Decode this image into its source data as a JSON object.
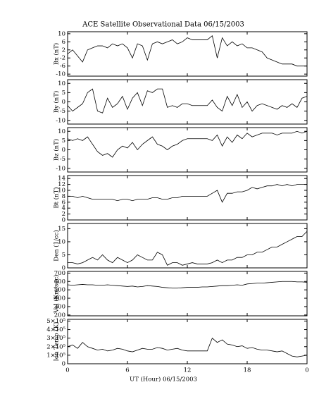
{
  "chart_data": [
    {
      "type": "line",
      "title": "ACE Satellite Observational Data  06/15/2003",
      "ylabel": "Bx (nT)",
      "color": "#000000",
      "x": [
        0,
        0.5,
        1,
        1.5,
        2,
        2.5,
        3,
        3.5,
        4,
        4.5,
        5,
        5.5,
        6,
        6.5,
        7,
        7.5,
        8,
        8.5,
        9,
        9.5,
        10,
        10.5,
        11,
        11.5,
        12,
        12.5,
        13,
        13.5,
        14,
        14.5,
        15,
        15.5,
        16,
        16.5,
        17,
        17.5,
        18,
        18.5,
        19,
        19.5,
        20,
        20.5,
        21,
        21.5,
        22,
        22.5,
        23,
        23.5,
        24
      ],
      "values": [
        0,
        2,
        -1,
        -4,
        2,
        3,
        4,
        4,
        3,
        5,
        4,
        5,
        3,
        -2,
        5,
        4,
        -3,
        5,
        6,
        5,
        6,
        7,
        5,
        6,
        8,
        7,
        7,
        7,
        7,
        9,
        -2,
        8,
        4,
        6,
        4,
        5,
        3,
        3,
        2,
        1,
        -2,
        -3,
        -4,
        -5,
        -5,
        -5,
        -6,
        -6,
        -6
      ],
      "xlim": [
        0,
        24
      ],
      "ylim": [
        -11,
        11
      ],
      "yticks": [
        -10,
        -6,
        -2,
        2,
        6,
        10
      ]
    },
    {
      "type": "line",
      "ylabel": "By (nT)",
      "color": "#000000",
      "x": [
        0,
        0.5,
        1,
        1.5,
        2,
        2.5,
        3,
        3.5,
        4,
        4.5,
        5,
        5.5,
        6,
        6.5,
        7,
        7.5,
        8,
        8.5,
        9,
        9.5,
        10,
        10.5,
        11,
        11.5,
        12,
        12.5,
        13,
        13.5,
        14,
        14.5,
        15,
        15.5,
        16,
        16.5,
        17,
        17.5,
        18,
        18.5,
        19,
        19.5,
        20,
        20.5,
        21,
        21.5,
        22,
        22.5,
        23,
        23.5,
        24
      ],
      "values": [
        -2,
        -5,
        -3,
        -1,
        5,
        7,
        -5,
        -6,
        2,
        -3,
        -1,
        3,
        -4,
        2,
        5,
        -2,
        6,
        5,
        7,
        7,
        -3,
        -2,
        -3,
        -1,
        -1,
        -2,
        -2,
        -2,
        -2,
        1,
        -3,
        -5,
        3,
        -2,
        4,
        -3,
        0,
        -5,
        -2,
        -1,
        -2,
        -3,
        -4,
        -2,
        -3,
        -1,
        -3,
        2,
        3
      ],
      "xlim": [
        0,
        24
      ],
      "ylim": [
        -12,
        12
      ],
      "yticks": [
        -10,
        -5,
        0,
        5,
        10
      ]
    },
    {
      "type": "line",
      "ylabel": "Bz (nT)",
      "color": "#000000",
      "x": [
        0,
        0.5,
        1,
        1.5,
        2,
        2.5,
        3,
        3.5,
        4,
        4.5,
        5,
        5.5,
        6,
        6.5,
        7,
        7.5,
        8,
        8.5,
        9,
        9.5,
        10,
        10.5,
        11,
        11.5,
        12,
        12.5,
        13,
        13.5,
        14,
        14.5,
        15,
        15.5,
        16,
        16.5,
        17,
        17.5,
        18,
        18.5,
        19,
        19.5,
        20,
        20.5,
        21,
        21.5,
        22,
        22.5,
        23,
        23.5,
        24
      ],
      "values": [
        6,
        5,
        6,
        5,
        7,
        3,
        -1,
        -3,
        -2,
        -4,
        0,
        2,
        1,
        4,
        0,
        3,
        5,
        7,
        3,
        2,
        0,
        2,
        3,
        5,
        6,
        6,
        6,
        6,
        6,
        5,
        8,
        2,
        7,
        4,
        8,
        6,
        9,
        7,
        8,
        9,
        9,
        9,
        8,
        9,
        9,
        9,
        10,
        9,
        10
      ],
      "xlim": [
        0,
        24
      ],
      "ylim": [
        -12,
        12
      ],
      "yticks": [
        -10,
        -5,
        0,
        5,
        10
      ]
    },
    {
      "type": "line",
      "ylabel": "Bt (nT)",
      "color": "#000000",
      "x": [
        0,
        0.5,
        1,
        1.5,
        2,
        2.5,
        3,
        3.5,
        4,
        4.5,
        5,
        5.5,
        6,
        6.5,
        7,
        7.5,
        8,
        8.5,
        9,
        9.5,
        10,
        10.5,
        11,
        11.5,
        12,
        12.5,
        13,
        13.5,
        14,
        14.5,
        15,
        15.5,
        16,
        16.5,
        17,
        17.5,
        18,
        18.5,
        19,
        19.5,
        20,
        20.5,
        21,
        21.5,
        22,
        22.5,
        23,
        23.5,
        24
      ],
      "values": [
        8,
        8,
        7.5,
        8,
        7.5,
        7,
        7,
        7,
        7,
        7,
        6.5,
        7,
        7,
        6.5,
        7,
        7,
        7,
        7.5,
        7.5,
        7,
        7,
        7.5,
        7.5,
        8,
        8,
        8,
        8,
        8,
        8,
        9,
        10,
        6,
        9,
        9,
        9.5,
        9.5,
        10,
        11,
        10.5,
        11,
        11.5,
        11.5,
        12,
        11.5,
        12,
        11.5,
        12,
        12,
        12
      ],
      "xlim": [
        0,
        24
      ],
      "ylim": [
        0,
        15
      ],
      "yticks": [
        0,
        2,
        4,
        6,
        8,
        10,
        12,
        14
      ]
    },
    {
      "type": "line",
      "ylabel": "Den (1/cc)",
      "color": "#000000",
      "x": [
        0,
        0.5,
        1,
        1.5,
        2,
        2.5,
        3,
        3.5,
        4,
        4.5,
        5,
        5.5,
        6,
        6.5,
        7,
        7.5,
        8,
        8.5,
        9,
        9.5,
        10,
        10.5,
        11,
        11.5,
        12,
        12.5,
        13,
        13.5,
        14,
        14.5,
        15,
        15.5,
        16,
        16.5,
        17,
        17.5,
        18,
        18.5,
        19,
        19.5,
        20,
        20.5,
        21,
        21.5,
        22,
        22.5,
        23,
        23.5,
        24
      ],
      "values": [
        2,
        2,
        1.5,
        2,
        3,
        4,
        3,
        5,
        3,
        2,
        4,
        3,
        2,
        3,
        5,
        4,
        3,
        3,
        6,
        5,
        1,
        2,
        2,
        1,
        1.5,
        2,
        1.5,
        1.5,
        1.5,
        2,
        3,
        2,
        3,
        3,
        4,
        4,
        5,
        5,
        6,
        6,
        7,
        8,
        8,
        9,
        10,
        11,
        12,
        12,
        14
      ],
      "xlim": [
        0,
        24
      ],
      "ylim": [
        0,
        17
      ],
      "yticks": [
        0,
        5,
        10,
        15
      ]
    },
    {
      "type": "line",
      "ylabel": "Vel (Km/sec)",
      "color": "#000000",
      "x": [
        0,
        0.5,
        1,
        1.5,
        2,
        2.5,
        3,
        3.5,
        4,
        4.5,
        5,
        5.5,
        6,
        6.5,
        7,
        7.5,
        8,
        8.5,
        9,
        9.5,
        10,
        10.5,
        11,
        11.5,
        12,
        12.5,
        13,
        13.5,
        14,
        14.5,
        15,
        15.5,
        16,
        16.5,
        17,
        17.5,
        18,
        18.5,
        19,
        19.5,
        20,
        20.5,
        21,
        21.5,
        22,
        22.5,
        23,
        23.5,
        24
      ],
      "values": [
        560,
        555,
        560,
        565,
        560,
        560,
        555,
        555,
        560,
        555,
        550,
        545,
        540,
        545,
        535,
        540,
        550,
        545,
        540,
        530,
        525,
        520,
        520,
        525,
        530,
        530,
        530,
        535,
        535,
        540,
        545,
        550,
        550,
        555,
        560,
        555,
        570,
        575,
        580,
        580,
        585,
        590,
        595,
        600,
        600,
        600,
        595,
        595,
        590
      ],
      "xlim": [
        0,
        24
      ],
      "ylim": [
        190,
        720
      ],
      "yticks": [
        200,
        300,
        400,
        500,
        600,
        700
      ]
    },
    {
      "type": "line",
      "ylabel": "Ion Temp (K)",
      "xlabel": "UT (Hour)  06/15/2003",
      "color": "#000000",
      "x": [
        0,
        0.5,
        1,
        1.5,
        2,
        2.5,
        3,
        3.5,
        4,
        4.5,
        5,
        5.5,
        6,
        6.5,
        7,
        7.5,
        8,
        8.5,
        9,
        9.5,
        10,
        10.5,
        11,
        11.5,
        12,
        12.5,
        13,
        13.5,
        14,
        14.5,
        15,
        15.5,
        16,
        16.5,
        17,
        17.5,
        18,
        18.5,
        19,
        19.5,
        20,
        20.5,
        21,
        21.5,
        22,
        22.5,
        23,
        23.5,
        24
      ],
      "values": [
        200000,
        220000,
        180000,
        250000,
        200000,
        180000,
        160000,
        170000,
        150000,
        160000,
        180000,
        170000,
        150000,
        140000,
        160000,
        180000,
        170000,
        170000,
        190000,
        180000,
        160000,
        170000,
        180000,
        160000,
        150000,
        150000,
        150000,
        150000,
        150000,
        300000,
        250000,
        280000,
        230000,
        220000,
        200000,
        210000,
        180000,
        190000,
        170000,
        160000,
        160000,
        150000,
        140000,
        150000,
        120000,
        90000,
        80000,
        90000,
        100000
      ],
      "xlim": [
        0,
        24
      ],
      "ylim": [
        0,
        520000
      ],
      "yticks": [
        0,
        {
          "value": 100000,
          "label": "1×10⁵"
        },
        {
          "value": 200000,
          "label": "2×10⁵"
        },
        {
          "value": 300000,
          "label": "3×10⁵"
        },
        {
          "value": 400000,
          "label": "4×10⁵"
        },
        {
          "value": 500000,
          "label": "5×10⁵"
        }
      ],
      "xticks": [
        0,
        6,
        12,
        18,
        {
          "value": 24,
          "label": "0"
        }
      ]
    }
  ]
}
